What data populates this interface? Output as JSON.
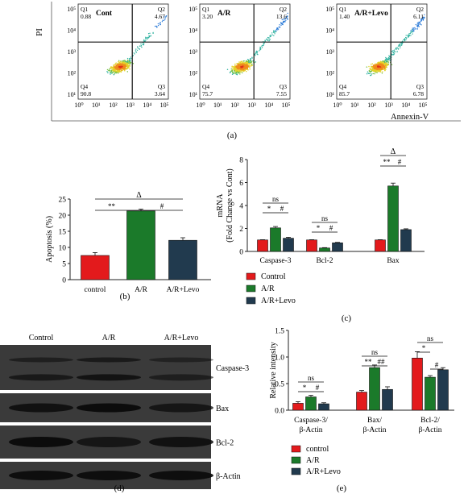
{
  "panel_labels": {
    "a": "(a)",
    "b": "(b)",
    "c": "(c)",
    "d": "(d)",
    "e": "(e)"
  },
  "flow": {
    "y_axis_label": "PI",
    "x_axis_label": "Annexin-V",
    "x_ticks": [
      "10⁰",
      "10¹",
      "10²",
      "10³",
      "10⁴",
      "10⁵"
    ],
    "y_ticks": [
      "10⁵",
      "10⁴",
      "10³",
      "10²",
      "10¹"
    ],
    "plots": [
      {
        "title": "Cont",
        "q1": "0.88",
        "q2": "4.67",
        "q3": "3.64",
        "q4": "90.8"
      },
      {
        "title": "A/R",
        "q1": "3.20",
        "q2": "13.6",
        "q3": "7.55",
        "q4": "75.7"
      },
      {
        "title": "A/R+Levo",
        "q1": "1.40",
        "q2": "6.11",
        "q3": "6.78",
        "q4": "85.7"
      }
    ],
    "quadrant_names": {
      "q1": "Q1",
      "q2": "Q2",
      "q3": "Q3",
      "q4": "Q4"
    }
  },
  "chart_data": [
    {
      "id": "b",
      "type": "bar",
      "categories": [
        "control",
        "A/R",
        "A/R+Levo"
      ],
      "values": [
        7.5,
        21.3,
        12.2
      ],
      "errors": [
        0.9,
        0.6,
        0.8
      ],
      "colors": [
        "#e31a1c",
        "#1b7a2a",
        "#213a4e"
      ],
      "ylabel": "Apoptosis (%)",
      "ylim": [
        0,
        25
      ],
      "yticks": [
        "0",
        "5",
        "10",
        "15",
        "20",
        "25"
      ],
      "annotations": [
        "**",
        "#",
        "Δ"
      ]
    },
    {
      "id": "c",
      "type": "bar",
      "categories": [
        "Caspase-3",
        "Bcl-2",
        "Bax"
      ],
      "ylabel": "mRNA (Fold Change vs Cont)",
      "ylim": [
        0,
        8
      ],
      "yticks": [
        "0",
        "2",
        "4",
        "6",
        "8"
      ],
      "series": [
        {
          "name": "Control",
          "color": "#e31a1c",
          "values": [
            1.0,
            1.0,
            1.0
          ],
          "errors": [
            0.02,
            0.02,
            0.02
          ]
        },
        {
          "name": "A/R",
          "color": "#1b7a2a",
          "values": [
            2.05,
            0.3,
            5.7
          ],
          "errors": [
            0.12,
            0.03,
            0.25
          ]
        },
        {
          "name": "A/R+Levo",
          "color": "#213a4e",
          "values": [
            1.15,
            0.75,
            1.9
          ],
          "errors": [
            0.08,
            0.04,
            0.07
          ]
        }
      ],
      "annotations": [
        "ns",
        "*",
        "#",
        "ns",
        "*",
        "#",
        "Δ",
        "**",
        "#"
      ]
    },
    {
      "id": "e",
      "type": "bar",
      "categories": [
        "Caspase-3/ β-Actin",
        "Bax/ β-Actin",
        "Bcl-2/ β-Actin"
      ],
      "ylabel": "Relative intensity",
      "ylim": [
        0,
        1.5
      ],
      "yticks": [
        "0.0",
        "0.5",
        "1.0",
        "1.5"
      ],
      "series": [
        {
          "name": "control",
          "color": "#e31a1c",
          "values": [
            0.13,
            0.34,
            0.98
          ],
          "errors": [
            0.03,
            0.03,
            0.12
          ]
        },
        {
          "name": "A/R",
          "color": "#1b7a2a",
          "values": [
            0.25,
            0.8,
            0.62
          ],
          "errors": [
            0.03,
            0.05,
            0.03
          ]
        },
        {
          "name": "A/R+Levo",
          "color": "#213a4e",
          "values": [
            0.12,
            0.39,
            0.76
          ],
          "errors": [
            0.02,
            0.05,
            0.04
          ]
        }
      ],
      "annotations": [
        "ns",
        "*",
        "#",
        "ns",
        "**",
        "##",
        "ns",
        "*",
        "#"
      ]
    }
  ],
  "western": {
    "columns": [
      "Control",
      "A/R",
      "A/R+Levo"
    ],
    "bands": [
      "Caspase-3",
      "Bax",
      "Bcl-2",
      "β-Actin"
    ]
  }
}
